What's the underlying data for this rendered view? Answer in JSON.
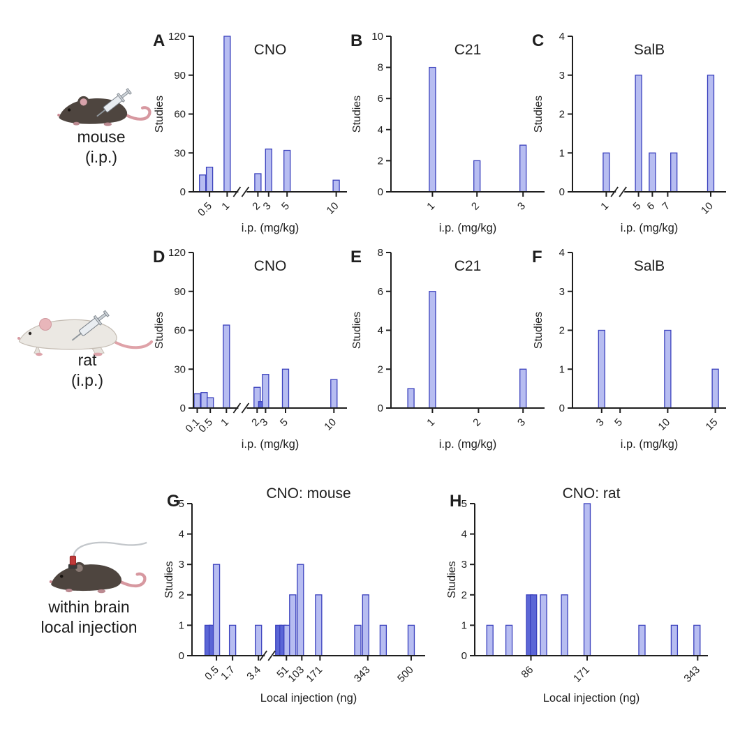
{
  "figure": {
    "rows": [
      {
        "label_lines": [
          "mouse",
          "(i.p.)"
        ]
      },
      {
        "label_lines": [
          "rat",
          "(i.p.)"
        ]
      },
      {
        "label_lines": [
          "within brain",
          "local injection"
        ]
      }
    ]
  },
  "colors": {
    "bar_fill": "#b7bdf1",
    "bar_fill_dark": "#5b66d6",
    "bar_border": "#3a40bd",
    "axis": "#1e1e1e",
    "text": "#1e1e1e"
  },
  "chart_data": [
    {
      "panel": "A",
      "type": "bar",
      "title": "CNO",
      "ylabel": "Studies",
      "xlabel": "i.p. (mg/kg)",
      "ylim": [
        0,
        120
      ],
      "yticks": [
        0,
        30,
        60,
        90,
        120
      ],
      "axis_break": true,
      "break_pos": 0.32,
      "bars": [
        {
          "pos": 0.06,
          "studies": 13
        },
        {
          "pos": 0.105,
          "dose": "0.5",
          "studies": 19
        },
        {
          "pos": 0.22,
          "dose": "1",
          "studies": 120
        },
        {
          "pos": 0.42,
          "dose": "2",
          "studies": 14
        },
        {
          "pos": 0.49,
          "dose": "3",
          "studies": 33
        },
        {
          "pos": 0.61,
          "dose": "5",
          "studies": 32
        },
        {
          "pos": 0.93,
          "dose": "10",
          "studies": 9
        }
      ],
      "xticks": [
        {
          "pos": 0.105,
          "label": "0.5"
        },
        {
          "pos": 0.22,
          "label": "1"
        },
        {
          "pos": 0.42,
          "label": "2"
        },
        {
          "pos": 0.49,
          "label": "3"
        },
        {
          "pos": 0.61,
          "label": "5"
        },
        {
          "pos": 0.93,
          "label": "10"
        }
      ]
    },
    {
      "panel": "B",
      "type": "bar",
      "title": "C21",
      "ylabel": "Studies",
      "xlabel": "i.p. (mg/kg)",
      "ylim": [
        0,
        10
      ],
      "yticks": [
        0,
        2,
        4,
        6,
        8,
        10
      ],
      "axis_break": false,
      "bars": [
        {
          "pos": 0.27,
          "dose": "1",
          "studies": 8
        },
        {
          "pos": 0.56,
          "dose": "2",
          "studies": 2
        },
        {
          "pos": 0.86,
          "dose": "3",
          "studies": 3
        }
      ],
      "xticks": [
        {
          "pos": 0.27,
          "label": "1"
        },
        {
          "pos": 0.56,
          "label": "2"
        },
        {
          "pos": 0.86,
          "label": "3"
        }
      ]
    },
    {
      "panel": "C",
      "type": "bar",
      "title": "SalB",
      "ylabel": "Studies",
      "xlabel": "i.p. (mg/kg)",
      "ylim": [
        0,
        4
      ],
      "yticks": [
        0,
        1,
        2,
        3,
        4
      ],
      "axis_break": true,
      "break_pos": 0.31,
      "bars": [
        {
          "pos": 0.22,
          "dose": "1",
          "studies": 1
        },
        {
          "pos": 0.43,
          "dose": "5",
          "studies": 3
        },
        {
          "pos": 0.52,
          "dose": "6",
          "studies": 1
        },
        {
          "pos": 0.66,
          "studies": 1
        },
        {
          "pos": 0.9,
          "dose": "10",
          "studies": 3
        }
      ],
      "xticks": [
        {
          "pos": 0.22,
          "label": "1"
        },
        {
          "pos": 0.43,
          "label": "5"
        },
        {
          "pos": 0.52,
          "label": "6"
        },
        {
          "pos": 0.62,
          "label": "7"
        },
        {
          "pos": 0.9,
          "label": "10"
        }
      ]
    },
    {
      "panel": "D",
      "type": "bar",
      "title": "CNO",
      "ylabel": "Studies",
      "xlabel": "i.p. (mg/kg)",
      "ylim": [
        0,
        120
      ],
      "yticks": [
        0,
        30,
        60,
        90,
        120
      ],
      "axis_break": true,
      "break_pos": 0.32,
      "bars": [
        {
          "pos": 0.025,
          "dose": "0.1",
          "studies": 11
        },
        {
          "pos": 0.07,
          "studies": 12
        },
        {
          "pos": 0.11,
          "dose": "0.5",
          "studies": 8
        },
        {
          "pos": 0.215,
          "dose": "1",
          "studies": 64
        },
        {
          "pos": 0.415,
          "dose": "2",
          "studies": 16
        },
        {
          "pos": 0.445,
          "studies": 5,
          "dark": true
        },
        {
          "pos": 0.47,
          "dose": "3",
          "studies": 26
        },
        {
          "pos": 0.6,
          "dose": "5",
          "studies": 30
        },
        {
          "pos": 0.915,
          "dose": "10",
          "studies": 22
        }
      ],
      "xticks": [
        {
          "pos": 0.025,
          "label": "0.1"
        },
        {
          "pos": 0.11,
          "label": "0.5"
        },
        {
          "pos": 0.215,
          "label": "1"
        },
        {
          "pos": 0.415,
          "label": "2"
        },
        {
          "pos": 0.47,
          "label": "3"
        },
        {
          "pos": 0.6,
          "label": "5"
        },
        {
          "pos": 0.915,
          "label": "10"
        }
      ]
    },
    {
      "panel": "E",
      "type": "bar",
      "title": "C21",
      "ylabel": "Studies",
      "xlabel": "i.p. (mg/kg)",
      "ylim": [
        0,
        8
      ],
      "yticks": [
        0,
        2,
        4,
        6,
        8
      ],
      "axis_break": false,
      "bars": [
        {
          "pos": 0.13,
          "studies": 1
        },
        {
          "pos": 0.27,
          "dose": "1",
          "studies": 6
        },
        {
          "pos": 0.86,
          "dose": "3",
          "studies": 2
        }
      ],
      "xticks": [
        {
          "pos": 0.27,
          "label": "1"
        },
        {
          "pos": 0.57,
          "label": "2"
        },
        {
          "pos": 0.86,
          "label": "3"
        }
      ]
    },
    {
      "panel": "F",
      "type": "bar",
      "title": "SalB",
      "ylabel": "Studies",
      "xlabel": "i.p. (mg/kg)",
      "ylim": [
        0,
        4
      ],
      "yticks": [
        0,
        1,
        2,
        3,
        4
      ],
      "axis_break": false,
      "bars": [
        {
          "pos": 0.19,
          "dose": "3",
          "studies": 2
        },
        {
          "pos": 0.62,
          "dose": "10",
          "studies": 2
        },
        {
          "pos": 0.93,
          "dose": "15",
          "studies": 1
        }
      ],
      "xticks": [
        {
          "pos": 0.19,
          "label": "3"
        },
        {
          "pos": 0.31,
          "label": "5"
        },
        {
          "pos": 0.62,
          "label": "10"
        },
        {
          "pos": 0.93,
          "label": "15"
        }
      ]
    },
    {
      "panel": "G",
      "type": "bar",
      "title": "CNO: mouse",
      "ylabel": "Studies",
      "xlabel": "Local injection (ng)",
      "ylim": [
        0,
        5
      ],
      "yticks": [
        0,
        1,
        2,
        3,
        4,
        5
      ],
      "axis_break": true,
      "break_pos": 0.33,
      "bars": [
        {
          "pos": 0.069,
          "studies": 1,
          "dark": true
        },
        {
          "pos": 0.087,
          "studies": 1,
          "dark": true
        },
        {
          "pos": 0.105,
          "dose": "0.5",
          "studies": 3
        },
        {
          "pos": 0.174,
          "dose": "1.7",
          "studies": 1
        },
        {
          "pos": 0.285,
          "dose": "3.4",
          "studies": 1
        },
        {
          "pos": 0.372,
          "studies": 1,
          "dark": true
        },
        {
          "pos": 0.39,
          "studies": 1,
          "dark": true
        },
        {
          "pos": 0.408,
          "dose": "51",
          "studies": 1
        },
        {
          "pos": 0.432,
          "studies": 2
        },
        {
          "pos": 0.465,
          "dose": "103",
          "studies": 3
        },
        {
          "pos": 0.543,
          "dose": "171",
          "studies": 2
        },
        {
          "pos": 0.711,
          "studies": 1
        },
        {
          "pos": 0.745,
          "dose": "343",
          "studies": 2
        },
        {
          "pos": 0.82,
          "studies": 1
        },
        {
          "pos": 0.94,
          "dose": "500",
          "studies": 1
        }
      ],
      "xticks": [
        {
          "pos": 0.105,
          "label": "0.5"
        },
        {
          "pos": 0.174,
          "label": "1.7"
        },
        {
          "pos": 0.285,
          "label": "3.4"
        },
        {
          "pos": 0.405,
          "label": "51"
        },
        {
          "pos": 0.471,
          "label": "103"
        },
        {
          "pos": 0.549,
          "label": "171"
        },
        {
          "pos": 0.754,
          "label": "343"
        },
        {
          "pos": 0.94,
          "label": "500"
        }
      ]
    },
    {
      "panel": "H",
      "type": "bar",
      "title": "CNO: rat",
      "ylabel": "Studies",
      "xlabel": "Local injection (ng)",
      "ylim": [
        0,
        5
      ],
      "yticks": [
        0,
        1,
        2,
        3,
        4,
        5
      ],
      "axis_break": false,
      "bars": [
        {
          "pos": 0.065,
          "studies": 1
        },
        {
          "pos": 0.147,
          "studies": 1
        },
        {
          "pos": 0.235,
          "dose": "86",
          "studies": 2,
          "dark": true
        },
        {
          "pos": 0.252,
          "studies": 2,
          "dark": true
        },
        {
          "pos": 0.295,
          "studies": 2
        },
        {
          "pos": 0.385,
          "studies": 2
        },
        {
          "pos": 0.482,
          "dose": "171",
          "studies": 5
        },
        {
          "pos": 0.717,
          "studies": 1
        },
        {
          "pos": 0.856,
          "studies": 1
        },
        {
          "pos": 0.953,
          "dose": "343",
          "studies": 1
        }
      ],
      "xticks": [
        {
          "pos": 0.241,
          "label": "86"
        },
        {
          "pos": 0.482,
          "label": "171"
        },
        {
          "pos": 0.956,
          "label": "343"
        }
      ]
    }
  ]
}
